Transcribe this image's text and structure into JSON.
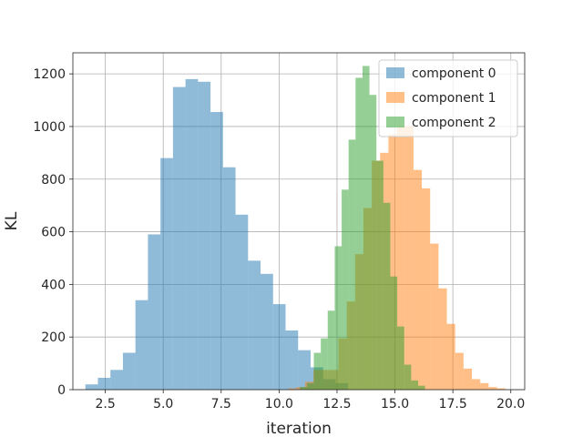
{
  "chart_data": {
    "type": "bar",
    "title": "",
    "xlabel": "iteration",
    "ylabel": "KL",
    "xlim": [
      1.1,
      20.6
    ],
    "ylim": [
      0,
      1280
    ],
    "grid": true,
    "legend_position": "top-right",
    "xticks": [
      "2.5",
      "5.0",
      "7.5",
      "10.0",
      "12.5",
      "15.0",
      "17.5",
      "20.0"
    ],
    "xtick_values": [
      2.5,
      5.0,
      7.5,
      10.0,
      12.5,
      15.0,
      17.5,
      20.0
    ],
    "yticks": [
      "0",
      "200",
      "400",
      "600",
      "800",
      "1000",
      "1200"
    ],
    "ytick_values": [
      0,
      200,
      400,
      600,
      800,
      1000,
      1200
    ],
    "series": [
      {
        "name": "component 0",
        "color": "#1f77b4",
        "alpha": 0.5,
        "bins": [
          [
            1.64,
            2.18,
            20
          ],
          [
            2.18,
            2.72,
            45
          ],
          [
            2.72,
            3.26,
            75
          ],
          [
            3.26,
            3.8,
            140
          ],
          [
            3.8,
            4.34,
            340
          ],
          [
            4.34,
            4.88,
            590
          ],
          [
            4.88,
            5.42,
            880
          ],
          [
            5.42,
            5.96,
            1150
          ],
          [
            5.96,
            6.5,
            1180
          ],
          [
            6.5,
            7.04,
            1170
          ],
          [
            7.04,
            7.58,
            1055
          ],
          [
            7.58,
            8.12,
            845
          ],
          [
            8.12,
            8.66,
            665
          ],
          [
            8.66,
            9.2,
            490
          ],
          [
            9.2,
            9.74,
            440
          ],
          [
            9.74,
            10.28,
            325
          ],
          [
            10.28,
            10.82,
            225
          ],
          [
            10.82,
            11.36,
            150
          ],
          [
            11.36,
            11.9,
            85
          ],
          [
            11.9,
            12.44,
            40
          ],
          [
            12.44,
            12.98,
            25
          ]
        ]
      },
      {
        "name": "component 1",
        "color": "#ff7f0e",
        "alpha": 0.5,
        "bins": [
          [
            10.4,
            10.76,
            5
          ],
          [
            10.76,
            11.12,
            10
          ],
          [
            11.12,
            11.48,
            30
          ],
          [
            11.48,
            11.84,
            75
          ],
          [
            11.84,
            12.2,
            75
          ],
          [
            12.2,
            12.56,
            75
          ],
          [
            12.56,
            12.92,
            195
          ],
          [
            12.92,
            13.28,
            335
          ],
          [
            13.28,
            13.64,
            515
          ],
          [
            13.64,
            14.0,
            690
          ],
          [
            14.0,
            14.36,
            870
          ],
          [
            14.36,
            14.72,
            900
          ],
          [
            14.72,
            15.08,
            970
          ],
          [
            15.08,
            15.44,
            1000
          ],
          [
            15.44,
            15.8,
            1000
          ],
          [
            15.8,
            16.16,
            835
          ],
          [
            16.16,
            16.52,
            765
          ],
          [
            16.52,
            16.88,
            555
          ],
          [
            16.88,
            17.24,
            385
          ],
          [
            17.24,
            17.6,
            250
          ],
          [
            17.6,
            17.96,
            140
          ],
          [
            17.96,
            18.32,
            80
          ],
          [
            18.32,
            18.68,
            40
          ],
          [
            18.68,
            19.04,
            25
          ],
          [
            19.04,
            19.4,
            10
          ],
          [
            19.4,
            19.76,
            5
          ]
        ]
      },
      {
        "name": "component 2",
        "color": "#2ca02c",
        "alpha": 0.5,
        "bins": [
          [
            10.9,
            11.2,
            10
          ],
          [
            11.2,
            11.5,
            25
          ],
          [
            11.5,
            11.8,
            140
          ],
          [
            11.8,
            12.1,
            195
          ],
          [
            12.1,
            12.4,
            300
          ],
          [
            12.4,
            12.7,
            545
          ],
          [
            12.7,
            13.0,
            760
          ],
          [
            13.0,
            13.3,
            950
          ],
          [
            13.3,
            13.6,
            1185
          ],
          [
            13.6,
            13.9,
            1230
          ],
          [
            13.9,
            14.2,
            1120
          ],
          [
            14.2,
            14.5,
            870
          ],
          [
            14.5,
            14.8,
            710
          ],
          [
            14.8,
            15.1,
            430
          ],
          [
            15.1,
            15.4,
            240
          ],
          [
            15.4,
            15.7,
            95
          ],
          [
            15.7,
            16.0,
            35
          ],
          [
            16.0,
            16.3,
            15
          ]
        ]
      }
    ]
  }
}
